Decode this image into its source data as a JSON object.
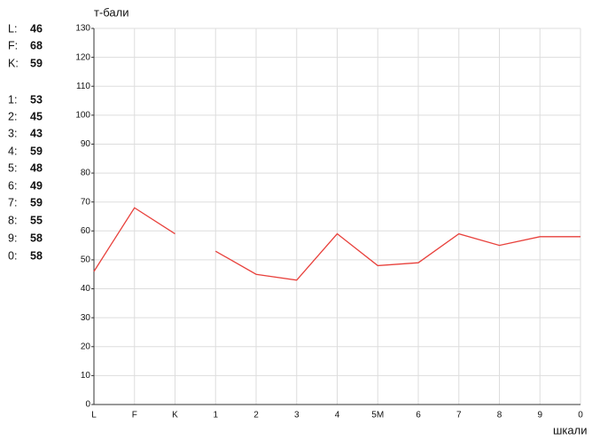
{
  "scores": [
    {
      "label": "L:",
      "value": 46
    },
    {
      "label": "F:",
      "value": 68
    },
    {
      "label": "K:",
      "value": 59
    },
    {
      "label": "1:",
      "value": 53
    },
    {
      "label": "2:",
      "value": 45
    },
    {
      "label": "3:",
      "value": 43
    },
    {
      "label": "4:",
      "value": 59
    },
    {
      "label": "5:",
      "value": 48
    },
    {
      "label": "6:",
      "value": 49
    },
    {
      "label": "7:",
      "value": 59
    },
    {
      "label": "8:",
      "value": 55
    },
    {
      "label": "9:",
      "value": 58
    },
    {
      "label": "0:",
      "value": 58
    }
  ],
  "chart_data": {
    "type": "line",
    "y_label": "т-бали",
    "x_label": "шкали",
    "categories": [
      "L",
      "F",
      "K",
      "1",
      "2",
      "3",
      "4",
      "5M",
      "6",
      "7",
      "8",
      "9",
      "0"
    ],
    "series": [
      {
        "color": "#e8413c",
        "values": [
          46,
          68,
          59,
          null,
          null,
          null,
          null,
          null,
          null,
          null,
          null,
          null,
          null
        ]
      },
      {
        "color": "#e8413c",
        "values": [
          null,
          null,
          null,
          53,
          45,
          43,
          59,
          48,
          49,
          59,
          55,
          58,
          58
        ]
      }
    ],
    "ylim": [
      0,
      130
    ],
    "yticks": [
      0,
      10,
      20,
      30,
      40,
      50,
      60,
      70,
      80,
      90,
      100,
      110,
      120,
      130
    ],
    "grid": true
  }
}
